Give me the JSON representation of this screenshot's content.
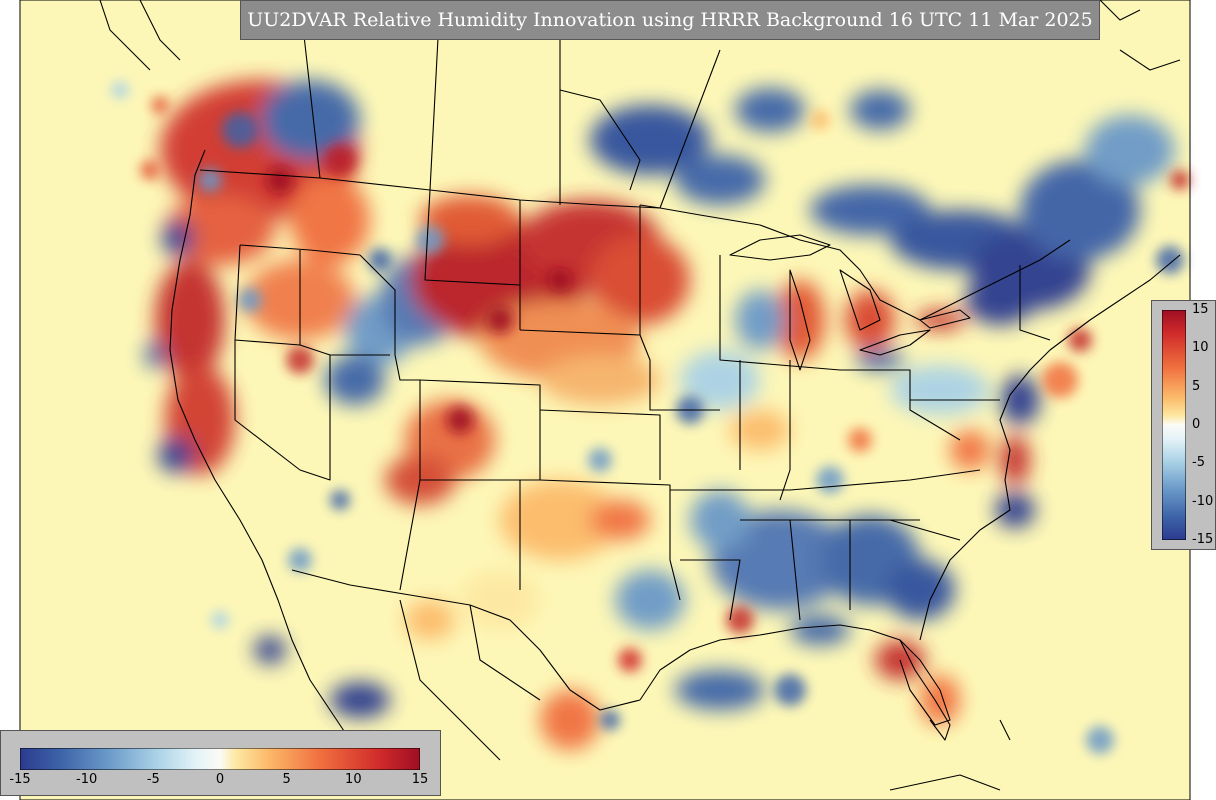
{
  "title": "UU2DVAR Relative Humidity Innovation using HRRR Background 16 UTC 11 Mar 2025",
  "colorbar": {
    "min": -15,
    "max": 15,
    "vertical_ticks": [
      "15",
      "10",
      "5",
      "0",
      "-5",
      "-10",
      "-15"
    ],
    "horizontal_ticks": [
      "-15",
      "-10",
      "-5",
      "0",
      "5",
      "10",
      "15"
    ],
    "colors": [
      "#2c3a8f",
      "#3d63a8",
      "#6a99c8",
      "#a9d1e6",
      "#e4f3f7",
      "#fbfbe6",
      "#fde8a2",
      "#fcba6b",
      "#f0703f",
      "#d02a2a",
      "#9e0e24"
    ]
  },
  "map": {
    "background_color": "#fdf7b7",
    "border_color": "#000000"
  }
}
